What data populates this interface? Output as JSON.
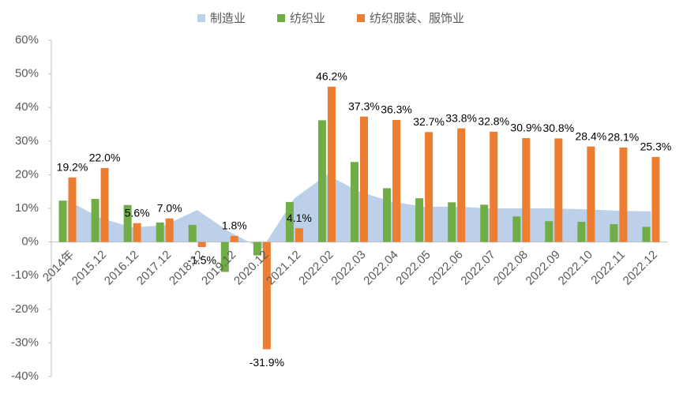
{
  "chart_data": {
    "type": "bar-area",
    "categories": [
      "2014年",
      "2015.12",
      "2016.12",
      "2017.12",
      "2018.12",
      "2019.12",
      "2020.12",
      "2021.12",
      "2022.02",
      "2022.03",
      "2022.04",
      "2022.05",
      "2022.06",
      "2022.07",
      "2022.08",
      "2022.09",
      "2022.10",
      "2022.11",
      "2022.12"
    ],
    "series": [
      {
        "name": "制造业",
        "kind": "area",
        "color": "#bdd0e9",
        "values": [
          12.4,
          7.2,
          4.3,
          5.0,
          9.5,
          3.0,
          -2.0,
          13.0,
          20.0,
          15.0,
          12.0,
          10.5,
          10.5,
          10.0,
          10.0,
          10.0,
          9.7,
          9.3,
          9.1
        ]
      },
      {
        "name": "纺织业",
        "kind": "bar",
        "color": "#70ad47",
        "values": [
          12.3,
          12.8,
          11.0,
          5.8,
          5.1,
          -8.9,
          -4.0,
          11.9,
          36.2,
          23.8,
          16.0,
          13.0,
          11.8,
          11.1,
          7.6,
          6.2,
          6.0,
          5.3,
          4.5
        ]
      },
      {
        "name": "纺织服装、服饰业",
        "kind": "bar",
        "color": "#ed7d31",
        "values": [
          19.2,
          22.0,
          5.6,
          7.0,
          -1.5,
          1.8,
          -31.9,
          4.1,
          46.2,
          37.3,
          36.3,
          32.7,
          33.8,
          32.8,
          30.9,
          30.8,
          28.4,
          28.1,
          25.3
        ],
        "value_labels": [
          "19.2%",
          "22.0%",
          "5.6%",
          "7.0%",
          "-1.5%",
          "1.8%",
          "-31.9%",
          "4.1%",
          "46.2%",
          "37.3%",
          "36.3%",
          "32.7%",
          "33.8%",
          "32.8%",
          "30.9%",
          "30.8%",
          "28.4%",
          "28.1%",
          "25.3%"
        ]
      }
    ],
    "ylim": [
      -40,
      60
    ],
    "yticks": [
      {
        "value": -40,
        "label": "-40%"
      },
      {
        "value": -30,
        "label": "-30%"
      },
      {
        "value": -20,
        "label": "-20%"
      },
      {
        "value": -10,
        "label": "-10%"
      },
      {
        "value": 0,
        "label": "0%"
      },
      {
        "value": 10,
        "label": "10%"
      },
      {
        "value": 20,
        "label": "20%"
      },
      {
        "value": 30,
        "label": "30%"
      },
      {
        "value": 40,
        "label": "40%"
      },
      {
        "value": 50,
        "label": "50%"
      },
      {
        "value": 60,
        "label": "60%"
      }
    ],
    "legend": "top",
    "grid": false
  }
}
